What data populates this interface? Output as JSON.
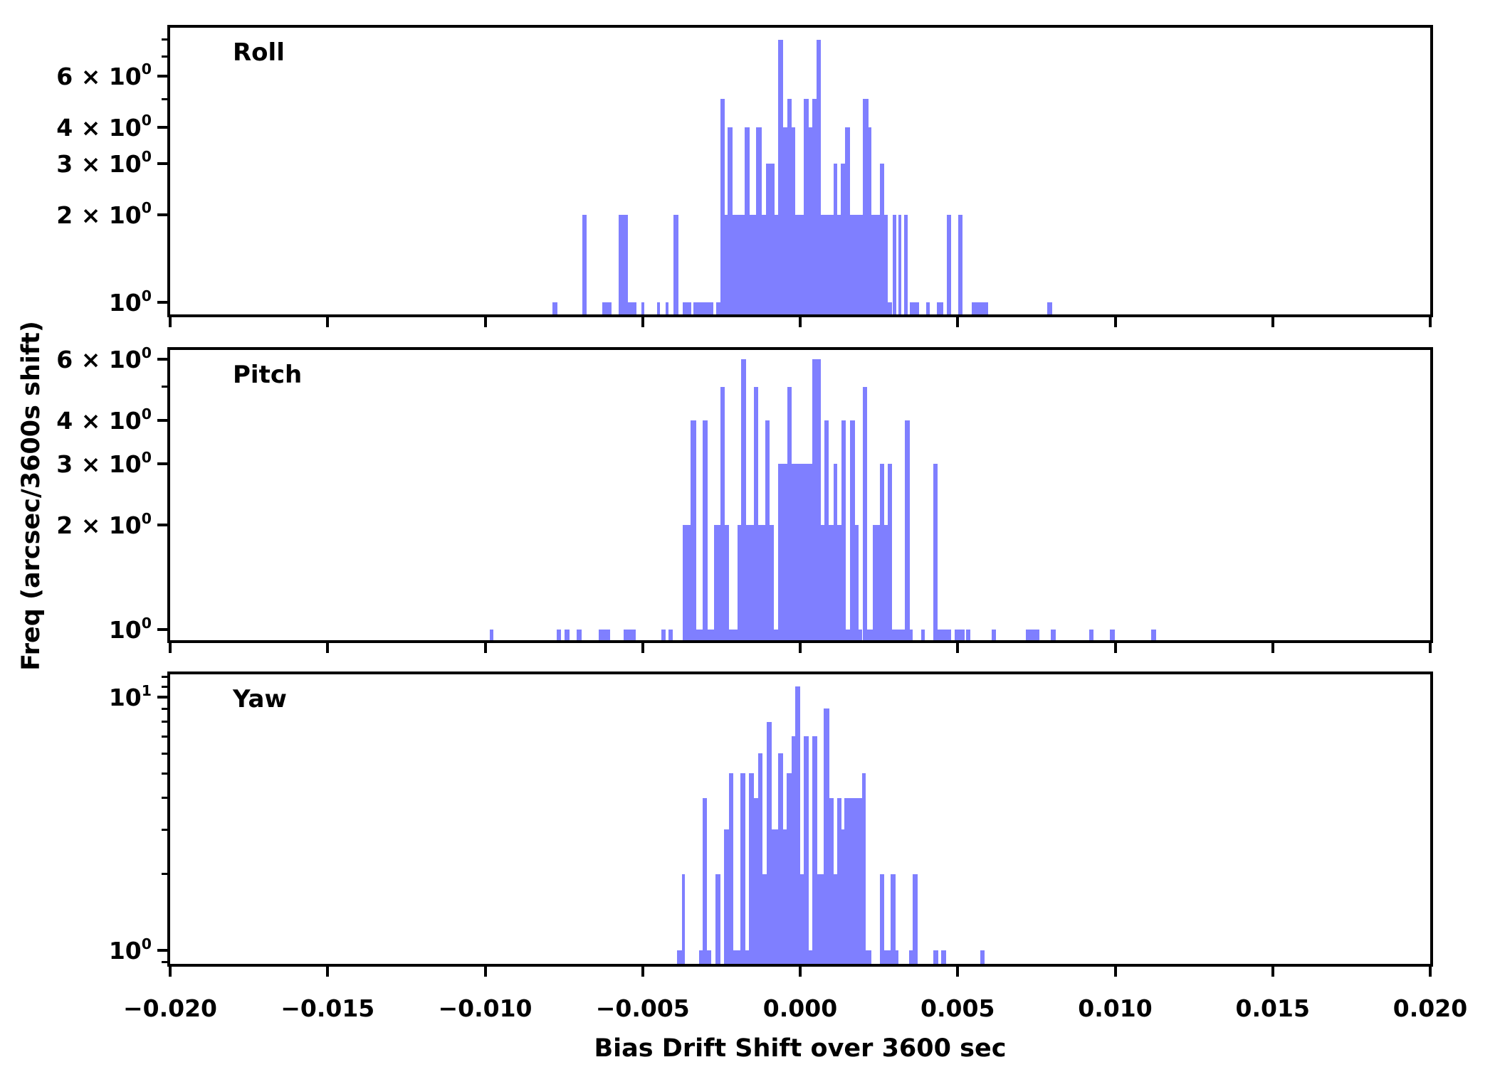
{
  "figure": {
    "background": "#ffffff",
    "bar_color": "#7f7fff",
    "spine_color": "#000000",
    "text_color": "#000000"
  },
  "x_axis": {
    "label": "Bias Drift Shift over 3600 sec",
    "min": -0.02,
    "max": 0.02,
    "tick_values": [
      -0.02,
      -0.015,
      -0.01,
      -0.005,
      0.0,
      0.005,
      0.01,
      0.015,
      0.02
    ],
    "tick_labels": [
      "−0.020",
      "−0.015",
      "−0.010",
      "−0.005",
      "0.000",
      "0.005",
      "0.010",
      "0.015",
      "0.020"
    ]
  },
  "y_axis": {
    "label": "Freq (arcsec/3600s shift)",
    "scale": "log"
  },
  "chart_data": [
    {
      "type": "bar",
      "subtype": "histogram",
      "title": "Roll",
      "xlim": [
        -0.02,
        0.02
      ],
      "ylim": [
        0.909,
        8.79
      ],
      "yticks_major": [
        {
          "value": 6,
          "pre": "6 × 10",
          "exp": "0"
        },
        {
          "value": 4,
          "pre": "4 × 10",
          "exp": "0"
        },
        {
          "value": 3,
          "pre": "3 × 10",
          "exp": "0"
        },
        {
          "value": 2,
          "pre": "2 × 10",
          "exp": "0"
        },
        {
          "value": 1,
          "pre": "10",
          "exp": "0"
        }
      ],
      "yticks_minor": [
        5,
        7,
        8
      ],
      "bars": [
        [
          -0.00786,
          -0.0077,
          1
        ],
        [
          -0.00691,
          -0.00678,
          2
        ],
        [
          -0.00628,
          -0.00599,
          1
        ],
        [
          -0.00577,
          -0.00547,
          2
        ],
        [
          -0.00547,
          -0.0052,
          1
        ],
        [
          -0.00505,
          -0.00495,
          1
        ],
        [
          -0.00455,
          -0.00446,
          1
        ],
        [
          -0.00426,
          -0.00417,
          1
        ],
        [
          -0.00403,
          -0.00387,
          2
        ],
        [
          -0.00374,
          -0.00345,
          1
        ],
        [
          -0.00338,
          -0.00275,
          1
        ],
        [
          -0.00266,
          -0.00252,
          1
        ],
        [
          -0.00252,
          -0.00239,
          5
        ],
        [
          -0.00239,
          -0.0023,
          2
        ],
        [
          -0.0023,
          -0.00214,
          4
        ],
        [
          -0.00214,
          -0.00176,
          2
        ],
        [
          -0.00176,
          -0.0016,
          4
        ],
        [
          -0.0016,
          -0.0014,
          2
        ],
        [
          -0.0014,
          -0.00122,
          4
        ],
        [
          -0.00122,
          -0.00108,
          2
        ],
        [
          -0.00108,
          -0.00095,
          3
        ],
        [
          -0.00095,
          -0.00081,
          3
        ],
        [
          -0.00081,
          -0.0007,
          2
        ],
        [
          -0.0007,
          -0.00054,
          8
        ],
        [
          -0.00054,
          -0.00041,
          4
        ],
        [
          -0.00041,
          -0.00027,
          5
        ],
        [
          -0.00027,
          -0.00016,
          4
        ],
        [
          -0.00016,
          0.00011,
          2
        ],
        [
          0.00011,
          0.00027,
          5
        ],
        [
          0.00027,
          0.00038,
          4
        ],
        [
          0.00038,
          0.00052,
          5
        ],
        [
          0.00052,
          0.00065,
          8
        ],
        [
          0.00065,
          0.00106,
          2
        ],
        [
          0.00106,
          0.00117,
          3
        ],
        [
          0.00117,
          0.00128,
          2
        ],
        [
          0.00128,
          0.00142,
          3
        ],
        [
          0.00142,
          0.00158,
          4
        ],
        [
          0.00158,
          0.00198,
          2
        ],
        [
          0.00198,
          0.00218,
          5
        ],
        [
          0.00218,
          0.00227,
          4
        ],
        [
          0.00227,
          0.00252,
          2
        ],
        [
          0.00252,
          0.00266,
          3
        ],
        [
          0.00266,
          0.00279,
          2
        ],
        [
          0.00279,
          0.00291,
          1
        ],
        [
          0.00293,
          0.00304,
          2
        ],
        [
          0.00311,
          0.00322,
          2
        ],
        [
          0.00331,
          0.00342,
          2
        ],
        [
          0.00349,
          0.00378,
          1
        ],
        [
          0.00399,
          0.00412,
          1
        ],
        [
          0.00435,
          0.00455,
          1
        ],
        [
          0.00466,
          0.0048,
          2
        ],
        [
          0.00502,
          0.00516,
          2
        ],
        [
          0.00545,
          0.00597,
          1
        ],
        [
          0.00784,
          0.008,
          1
        ]
      ]
    },
    {
      "type": "bar",
      "subtype": "histogram",
      "title": "Pitch",
      "xlim": [
        -0.02,
        0.02
      ],
      "ylim": [
        0.932,
        6.38
      ],
      "yticks_major": [
        {
          "value": 6,
          "pre": "6 × 10",
          "exp": "0"
        },
        {
          "value": 4,
          "pre": "4 × 10",
          "exp": "0"
        },
        {
          "value": 3,
          "pre": "3 × 10",
          "exp": "0"
        },
        {
          "value": 2,
          "pre": "2 × 10",
          "exp": "0"
        },
        {
          "value": 1,
          "pre": "10",
          "exp": "0"
        }
      ],
      "yticks_minor": [
        5
      ],
      "bars": [
        [
          -0.00986,
          -0.00973,
          1
        ],
        [
          -0.00772,
          -0.00759,
          1
        ],
        [
          -0.00748,
          -0.00732,
          1
        ],
        [
          -0.00709,
          -0.00694,
          1
        ],
        [
          -0.0064,
          -0.00604,
          1
        ],
        [
          -0.00561,
          -0.00523,
          1
        ],
        [
          -0.00441,
          -0.00428,
          1
        ],
        [
          -0.00419,
          -0.00405,
          1
        ],
        [
          -0.00374,
          -0.00347,
          2
        ],
        [
          -0.00347,
          -0.00331,
          4
        ],
        [
          -0.00331,
          -0.00309,
          1
        ],
        [
          -0.00309,
          -0.00293,
          4
        ],
        [
          -0.00293,
          -0.00273,
          1
        ],
        [
          -0.00273,
          -0.00254,
          2
        ],
        [
          -0.00254,
          -0.00239,
          5
        ],
        [
          -0.00239,
          -0.00225,
          2
        ],
        [
          -0.00225,
          -0.002,
          1
        ],
        [
          -0.002,
          -0.00187,
          2
        ],
        [
          -0.00187,
          -0.00171,
          6
        ],
        [
          -0.00171,
          -0.00146,
          2
        ],
        [
          -0.00146,
          -0.00133,
          5
        ],
        [
          -0.00133,
          -0.0011,
          2
        ],
        [
          -0.0011,
          -0.00097,
          4
        ],
        [
          -0.00097,
          -0.00083,
          2
        ],
        [
          -0.00083,
          -0.0007,
          1
        ],
        [
          -0.0007,
          -0.00041,
          3
        ],
        [
          -0.00041,
          -0.00027,
          5
        ],
        [
          -0.00027,
          0.00038,
          3
        ],
        [
          0.00038,
          0.00065,
          6
        ],
        [
          0.00065,
          0.00077,
          2
        ],
        [
          0.00077,
          0.0009,
          4
        ],
        [
          0.0009,
          0.00106,
          2
        ],
        [
          0.00106,
          0.00117,
          3
        ],
        [
          0.00117,
          0.00131,
          2
        ],
        [
          0.00131,
          0.00144,
          4
        ],
        [
          0.00144,
          0.00158,
          1
        ],
        [
          0.00158,
          0.00173,
          4
        ],
        [
          0.00173,
          0.00185,
          2
        ],
        [
          0.00185,
          0.00196,
          1
        ],
        [
          0.00198,
          0.00212,
          5
        ],
        [
          0.00212,
          0.0023,
          1
        ],
        [
          0.0023,
          0.00252,
          2
        ],
        [
          0.00252,
          0.00266,
          3
        ],
        [
          0.00266,
          0.00277,
          2
        ],
        [
          0.00277,
          0.00291,
          3
        ],
        [
          0.00291,
          0.00333,
          1
        ],
        [
          0.00333,
          0.00347,
          4
        ],
        [
          0.00347,
          0.00358,
          1
        ],
        [
          0.00385,
          0.00396,
          1
        ],
        [
          0.00423,
          0.00437,
          3
        ],
        [
          0.00437,
          0.0048,
          1
        ],
        [
          0.00491,
          0.00523,
          1
        ],
        [
          0.00527,
          0.00541,
          1
        ],
        [
          0.00608,
          0.00622,
          1
        ],
        [
          0.00716,
          0.00759,
          1
        ],
        [
          0.00795,
          0.00811,
          1
        ],
        [
          0.00917,
          0.0093,
          1
        ],
        [
          0.00984,
          0.00998,
          1
        ],
        [
          0.01115,
          0.01131,
          1
        ]
      ]
    },
    {
      "type": "bar",
      "subtype": "histogram",
      "title": "Yaw",
      "xlim": [
        -0.02,
        0.02
      ],
      "ylim": [
        0.885,
        12.3
      ],
      "yticks_major": [
        {
          "value": 10,
          "pre": "10",
          "exp": "1"
        },
        {
          "value": 1,
          "pre": "10",
          "exp": "0"
        }
      ],
      "yticks_minor": [
        0.9,
        2,
        3,
        4,
        5,
        6,
        7,
        8,
        9,
        11,
        12
      ],
      "bars": [
        [
          -0.00392,
          -0.00376,
          1
        ],
        [
          -0.00376,
          -0.00365,
          2
        ],
        [
          -0.0032,
          -0.00309,
          1
        ],
        [
          -0.00309,
          -0.00295,
          4
        ],
        [
          -0.00295,
          -0.00282,
          1
        ],
        [
          -0.00268,
          -0.00254,
          2
        ],
        [
          -0.00241,
          -0.00227,
          3
        ],
        [
          -0.00227,
          -0.00212,
          5
        ],
        [
          -0.00212,
          -0.00189,
          1
        ],
        [
          -0.00189,
          -0.00173,
          5
        ],
        [
          -0.00173,
          -0.00162,
          1
        ],
        [
          -0.00162,
          -0.00146,
          5
        ],
        [
          -0.00146,
          -0.00133,
          4
        ],
        [
          -0.00133,
          -0.00119,
          6
        ],
        [
          -0.00119,
          -0.00106,
          2
        ],
        [
          -0.00106,
          -0.0009,
          8
        ],
        [
          -0.0009,
          -0.0007,
          3
        ],
        [
          -0.0007,
          -0.00054,
          6
        ],
        [
          -0.00054,
          -0.00043,
          3
        ],
        [
          -0.00043,
          -0.00027,
          5
        ],
        [
          -0.00027,
          -0.00016,
          7
        ],
        [
          -0.00016,
          0.0,
          11
        ],
        [
          0.0,
          0.00011,
          2
        ],
        [
          0.00011,
          0.00027,
          7
        ],
        [
          0.00027,
          0.00038,
          1
        ],
        [
          0.00038,
          0.00054,
          7
        ],
        [
          0.00054,
          0.00074,
          2
        ],
        [
          0.00074,
          0.00092,
          9
        ],
        [
          0.00092,
          0.00106,
          4
        ],
        [
          0.00106,
          0.00117,
          2
        ],
        [
          0.00117,
          0.00131,
          4
        ],
        [
          0.00131,
          0.0014,
          3
        ],
        [
          0.0014,
          0.00196,
          4
        ],
        [
          0.00196,
          0.00209,
          5
        ],
        [
          0.00209,
          0.00227,
          1
        ],
        [
          0.00252,
          0.00266,
          2
        ],
        [
          0.00266,
          0.00288,
          1
        ],
        [
          0.00288,
          0.00302,
          2
        ],
        [
          0.00302,
          0.00313,
          1
        ],
        [
          0.00345,
          0.00356,
          1
        ],
        [
          0.00356,
          0.00372,
          2
        ],
        [
          0.00423,
          0.00439,
          1
        ],
        [
          0.00448,
          0.00464,
          1
        ],
        [
          0.00572,
          0.00586,
          1
        ]
      ]
    }
  ]
}
